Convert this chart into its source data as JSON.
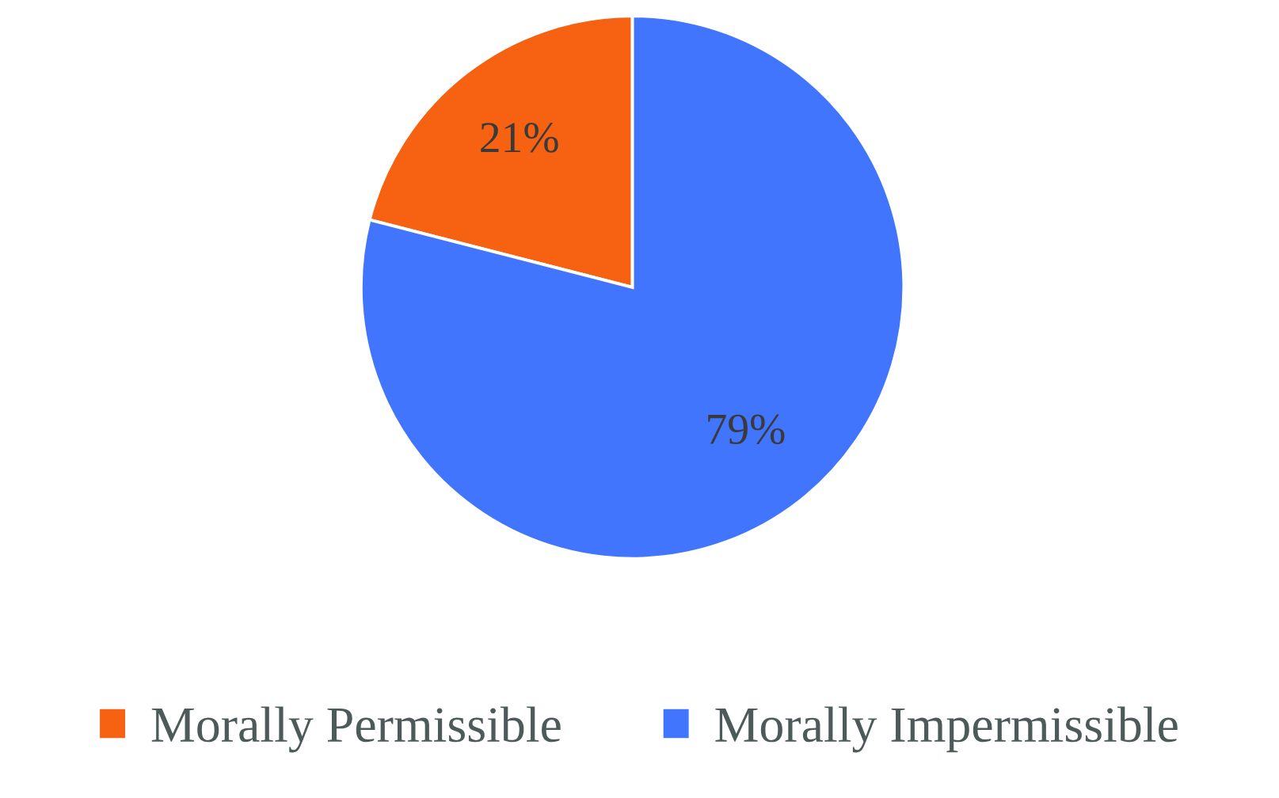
{
  "chart_data": {
    "type": "pie",
    "categories": [
      "Morally Permissible",
      "Morally Impermissible"
    ],
    "values": [
      21,
      79
    ],
    "colors": [
      "#f76212",
      "#4175fe"
    ],
    "value_labels": [
      "21%",
      "79%"
    ],
    "legend": "bottom"
  }
}
